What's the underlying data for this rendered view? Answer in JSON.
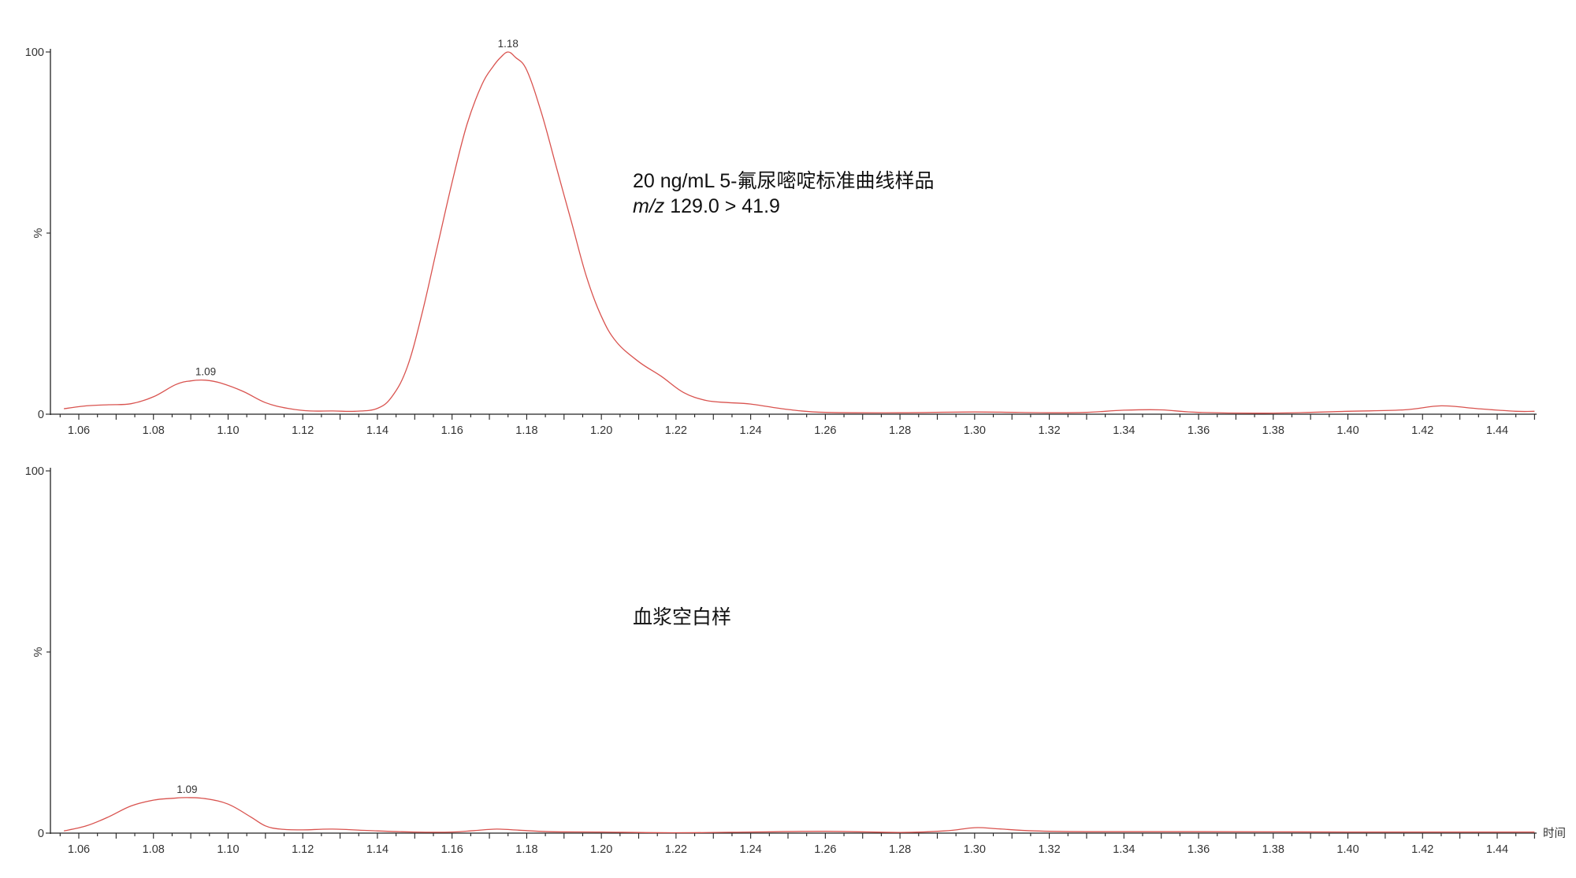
{
  "colors": {
    "trace": "#d9534f",
    "axis": "#222222",
    "text": "#333333"
  },
  "chart_data": [
    {
      "type": "line",
      "annotation_line1": "20 ng/mL 5-氟尿嘧啶标准曲线样品",
      "annotation_mz_italic": "m/z",
      "annotation_mz_value": " 129.0 > 41.9",
      "ylabel": "%",
      "xlabel": "",
      "ylim": [
        0,
        100
      ],
      "xlim": [
        1.055,
        1.45
      ],
      "y_ticks": [
        "0",
        "100"
      ],
      "x_ticks": [
        "1.06",
        "1.08",
        "1.10",
        "1.12",
        "1.14",
        "1.16",
        "1.18",
        "1.20",
        "1.22",
        "1.24",
        "1.26",
        "1.28",
        "1.30",
        "1.32",
        "1.34",
        "1.36",
        "1.38",
        "1.40",
        "1.42",
        "1.44"
      ],
      "peak_labels": [
        {
          "x": 1.094,
          "y": 9.5,
          "label": "1.09"
        },
        {
          "x": 1.175,
          "y": 100,
          "label": "1.18"
        }
      ],
      "series": [
        {
          "x": [
            1.056,
            1.062,
            1.068,
            1.074,
            1.08,
            1.086,
            1.09,
            1.094,
            1.098,
            1.104,
            1.11,
            1.116,
            1.122,
            1.128,
            1.134,
            1.14,
            1.144,
            1.148,
            1.152,
            1.156,
            1.16,
            1.164,
            1.168,
            1.171,
            1.173,
            1.175,
            1.177,
            1.18,
            1.184,
            1.188,
            1.192,
            1.196,
            1.2,
            1.204,
            1.21,
            1.216,
            1.222,
            1.228,
            1.234,
            1.24,
            1.25,
            1.26,
            1.28,
            1.3,
            1.32,
            1.33,
            1.34,
            1.35,
            1.36,
            1.38,
            1.4,
            1.415,
            1.425,
            1.435,
            1.445,
            1.45
          ],
          "y": [
            1.5,
            2.3,
            2.6,
            2.9,
            4.8,
            8.2,
            9.2,
            9.4,
            8.6,
            6.3,
            3.2,
            1.6,
            0.9,
            0.9,
            0.8,
            1.6,
            5.0,
            13.0,
            28.0,
            46.0,
            64.0,
            80.0,
            91.0,
            96.0,
            98.5,
            100,
            98.5,
            95.0,
            83.0,
            68.0,
            53.0,
            38.0,
            27.0,
            20.0,
            14.5,
            10.5,
            6.0,
            3.8,
            3.2,
            2.8,
            1.3,
            0.5,
            0.4,
            0.6,
            0.4,
            0.5,
            1.1,
            1.2,
            0.5,
            0.3,
            0.8,
            1.2,
            2.3,
            1.5,
            0.8,
            0.8
          ]
        }
      ]
    },
    {
      "type": "line",
      "annotation_line1": "血浆空白样",
      "ylabel": "%",
      "xlabel": "时间",
      "ylim": [
        0,
        100
      ],
      "xlim": [
        1.055,
        1.45
      ],
      "y_ticks": [
        "0",
        "100"
      ],
      "x_ticks": [
        "1.06",
        "1.08",
        "1.10",
        "1.12",
        "1.14",
        "1.16",
        "1.18",
        "1.20",
        "1.22",
        "1.24",
        "1.26",
        "1.28",
        "1.30",
        "1.32",
        "1.34",
        "1.36",
        "1.38",
        "1.40",
        "1.42",
        "1.44"
      ],
      "peak_labels": [
        {
          "x": 1.089,
          "y": 9.8,
          "label": "1.09"
        }
      ],
      "series": [
        {
          "x": [
            1.056,
            1.062,
            1.068,
            1.074,
            1.08,
            1.085,
            1.089,
            1.094,
            1.1,
            1.106,
            1.11,
            1.114,
            1.12,
            1.128,
            1.14,
            1.15,
            1.16,
            1.166,
            1.172,
            1.178,
            1.186,
            1.2,
            1.22,
            1.24,
            1.26,
            1.28,
            1.292,
            1.3,
            1.306,
            1.316,
            1.33,
            1.36,
            1.4,
            1.43,
            1.45
          ],
          "y": [
            0.6,
            2.0,
            4.5,
            7.5,
            9.1,
            9.6,
            9.8,
            9.5,
            8.0,
            4.5,
            2.0,
            1.1,
            0.9,
            1.1,
            0.6,
            0.3,
            0.3,
            0.7,
            1.1,
            0.8,
            0.4,
            0.3,
            0.1,
            0.3,
            0.5,
            0.2,
            0.6,
            1.5,
            1.2,
            0.6,
            0.4,
            0.4,
            0.3,
            0.3,
            0.3
          ]
        }
      ]
    }
  ]
}
